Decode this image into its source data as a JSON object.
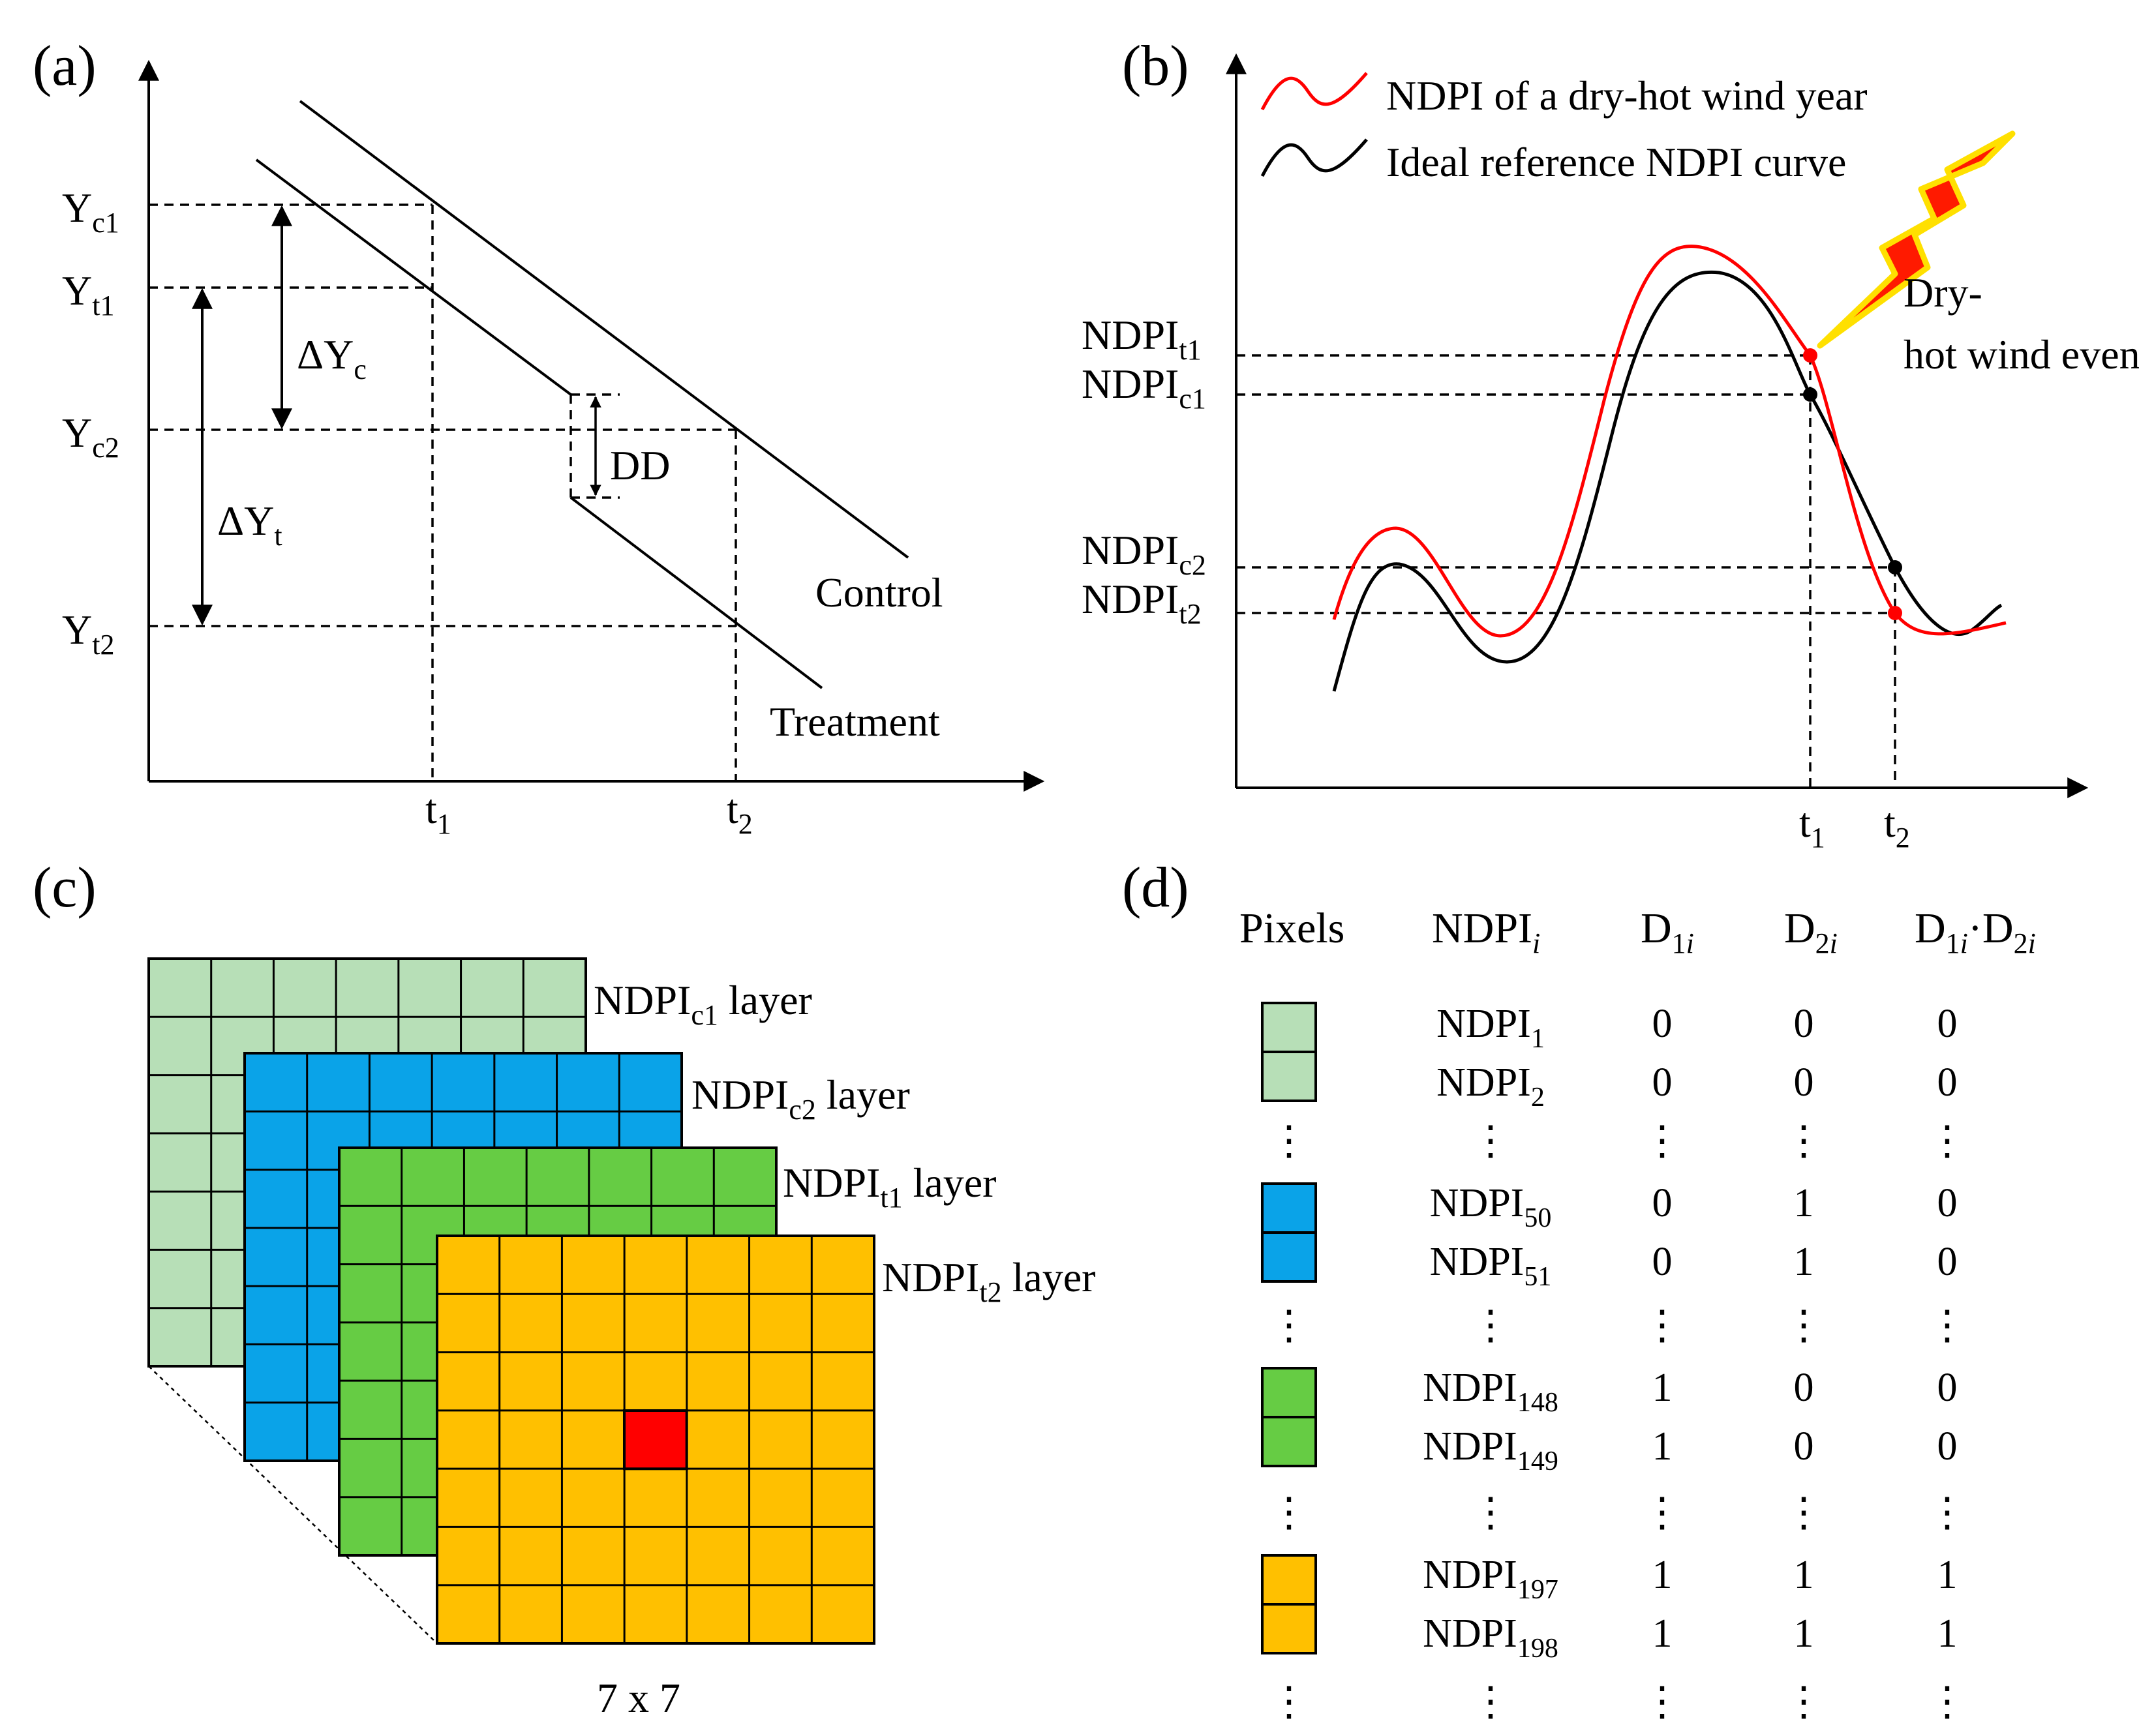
{
  "panel_a": {
    "label": "(a)",
    "y_labels": [
      {
        "main": "Y",
        "sub": "c1"
      },
      {
        "main": "Y",
        "sub": "t1"
      },
      {
        "main": "Y",
        "sub": "c2"
      },
      {
        "main": "Y",
        "sub": "t2"
      }
    ],
    "x_labels": [
      {
        "main": "t",
        "sub": "1"
      },
      {
        "main": "t",
        "sub": "2"
      }
    ],
    "delta_c": {
      "main": "ΔY",
      "sub": "c"
    },
    "delta_t": {
      "main": "ΔY",
      "sub": "t"
    },
    "dd": "DD",
    "control": "Control",
    "treatment": "Treatment"
  },
  "panel_b": {
    "label": "(b)",
    "legend": [
      {
        "text": "NDPI of a dry-hot wind year",
        "color": "#ff0000"
      },
      {
        "text": "Ideal reference NDPI curve",
        "color": "#000000"
      }
    ],
    "event": [
      "Dry-",
      "hot wind event"
    ],
    "y_labels": [
      {
        "main": "NDPI",
        "sub": "t1"
      },
      {
        "main": "NDPI",
        "sub": "c1"
      },
      {
        "main": "NDPI",
        "sub": "c2"
      },
      {
        "main": "NDPI",
        "sub": "t2"
      }
    ],
    "x_labels": [
      {
        "main": "t",
        "sub": "1"
      },
      {
        "main": "t",
        "sub": "2"
      }
    ]
  },
  "panel_c": {
    "label": "(c)",
    "layers": [
      {
        "main": "NDPI",
        "sub": "c1",
        "suffix": " layer",
        "color": "#b7dfb7"
      },
      {
        "main": "NDPI",
        "sub": "c2",
        "suffix": " layer",
        "color": "#0aa3e8"
      },
      {
        "main": "NDPI",
        "sub": "t1",
        "suffix": " layer",
        "color": "#66cc44"
      },
      {
        "main": "NDPI",
        "sub": "t2",
        "suffix": " layer",
        "color": "#ffc000"
      }
    ],
    "highlight_color": "#ff0000",
    "grid_size": "7 x 7"
  },
  "panel_d": {
    "label": "(d)",
    "headers": {
      "pixels": "Pixels",
      "ndpi": {
        "main": "NDPI",
        "sub": "i"
      },
      "d1": {
        "main": "D",
        "sub": "1",
        "italic": "i"
      },
      "d2": {
        "main": "D",
        "sub": "2",
        "italic": "i"
      },
      "prod": {
        "a": "D",
        "a_sub": "1",
        "a_it": "i",
        "dot": "·",
        "b": "D",
        "b_sub": "2",
        "b_it": "i"
      }
    },
    "vdots": "⋮",
    "rows": [
      {
        "main": "NDPI",
        "sub": "1",
        "d1": "0",
        "d2": "0",
        "prod": "0"
      },
      {
        "main": "NDPI",
        "sub": "2",
        "d1": "0",
        "d2": "0",
        "prod": "0"
      },
      {
        "main": "NDPI",
        "sub": "50",
        "d1": "0",
        "d2": "1",
        "prod": "0"
      },
      {
        "main": "NDPI",
        "sub": "51",
        "d1": "0",
        "d2": "1",
        "prod": "0"
      },
      {
        "main": "NDPI",
        "sub": "148",
        "d1": "1",
        "d2": "0",
        "prod": "0"
      },
      {
        "main": "NDPI",
        "sub": "149",
        "d1": "1",
        "d2": "0",
        "prod": "0"
      },
      {
        "main": "NDPI",
        "sub": "197",
        "d1": "1",
        "d2": "1",
        "prod": "1"
      },
      {
        "main": "NDPI",
        "sub": "198",
        "d1": "1",
        "d2": "1",
        "prod": "1"
      }
    ]
  }
}
